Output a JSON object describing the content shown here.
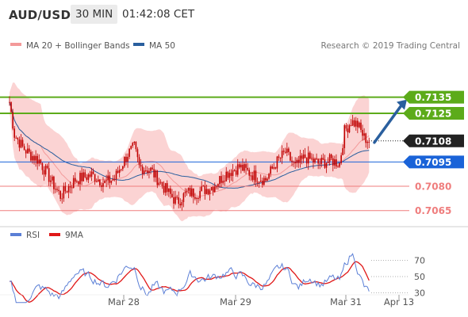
{
  "header": {
    "pair": "AUD/USD",
    "timeframe": "30 MIN",
    "time": "01:42:08 CET"
  },
  "legend": {
    "bollinger_label": "MA 20 + Bollinger Bands",
    "ma50_label": "MA 50",
    "rsi_label": "RSI",
    "rsi_ma_label": "9MA",
    "copyright": "Research © 2019 Trading Central"
  },
  "colors": {
    "candle": "#c00000",
    "band_fill": "#fbd3d3",
    "ma20": "#f39a9a",
    "ma50": "#2a5f9e",
    "resistance": "#5cab1a",
    "support": "#ef7d7d",
    "pivot": "#1a63d8",
    "last_price": "#222222",
    "arrow": "#2a5f9e",
    "rsi": "#5b7fd6",
    "rsi_ma": "#e01818"
  },
  "chart_data": {
    "type": "candlestick",
    "x_tick_labels": [
      "Mar 28",
      "Mar 29",
      "Mar 31",
      "Apr 13"
    ],
    "ylim": [
      0.7058,
      0.7148
    ],
    "levels": [
      {
        "label": "0.7135",
        "value": 0.7135,
        "kind": "resistance"
      },
      {
        "label": "0.7125",
        "value": 0.7125,
        "kind": "resistance"
      },
      {
        "label": "0.7108",
        "value": 0.7108,
        "kind": "last"
      },
      {
        "label": "0.7095",
        "value": 0.7095,
        "kind": "pivot"
      },
      {
        "label": "0.7080",
        "value": 0.708,
        "kind": "support"
      },
      {
        "label": "0.7065",
        "value": 0.7065,
        "kind": "support"
      }
    ],
    "projection": {
      "from": 0.7108,
      "to": 0.7135
    },
    "rsi_levels": [
      "70",
      "50",
      "30"
    ],
    "rsi_ylim": [
      10,
      90
    ]
  }
}
